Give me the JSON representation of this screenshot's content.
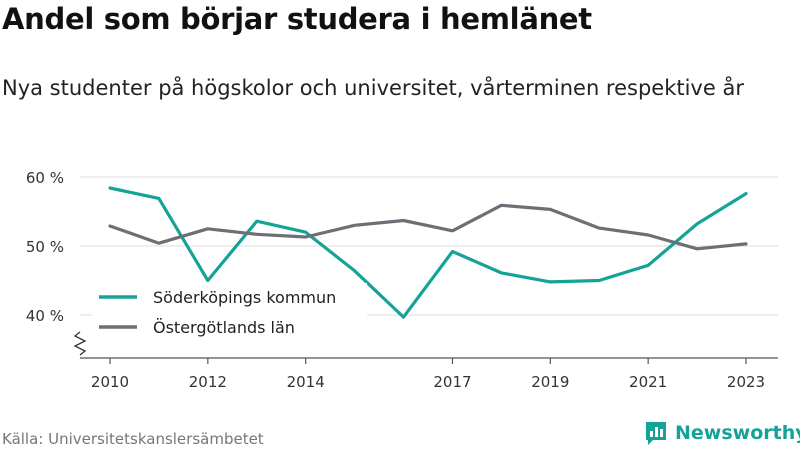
{
  "header": {
    "title": "Andel som börjar studera i hemlänet",
    "subtitle": "Nya studenter på högskolor och universitet, vårterminen respektive år"
  },
  "footer": {
    "source": "Källa: Universitetskanslersämbetet",
    "brand": "Newsworthy",
    "brand_icon": "bar-chart-logo-icon"
  },
  "colors": {
    "soderkoping": "#14a396",
    "ostergotland": "#6f6e76",
    "grid": "#dddddd",
    "axis": "#555555",
    "brand": "#14a396"
  },
  "chart_data": {
    "type": "line",
    "x": [
      2010,
      2011,
      2012,
      2013,
      2014,
      2015,
      2016,
      2017,
      2018,
      2019,
      2020,
      2021,
      2022,
      2023
    ],
    "x_tick_labels": [
      "2010",
      "2012",
      "2014",
      "2017",
      "2019",
      "2021",
      "2023"
    ],
    "y_tick_values": [
      40,
      50,
      60
    ],
    "y_tick_labels": [
      "40 %",
      "50 %",
      "60 %"
    ],
    "ylim": [
      35,
      62
    ],
    "y_axis_broken": true,
    "grid": true,
    "legend_position": "bottom-left",
    "series": [
      {
        "name": "Söderköpings kommun",
        "color": "#14a396",
        "values": [
          58.4,
          56.9,
          45.0,
          53.6,
          52.0,
          46.4,
          39.7,
          49.2,
          46.1,
          44.8,
          45.0,
          47.2,
          53.2,
          57.6
        ]
      },
      {
        "name": "Östergötlands län",
        "color": "#6f6e76",
        "values": [
          52.9,
          50.4,
          52.5,
          51.7,
          51.3,
          53.0,
          53.7,
          52.2,
          55.9,
          55.3,
          52.6,
          51.6,
          49.6,
          50.3
        ]
      }
    ]
  }
}
